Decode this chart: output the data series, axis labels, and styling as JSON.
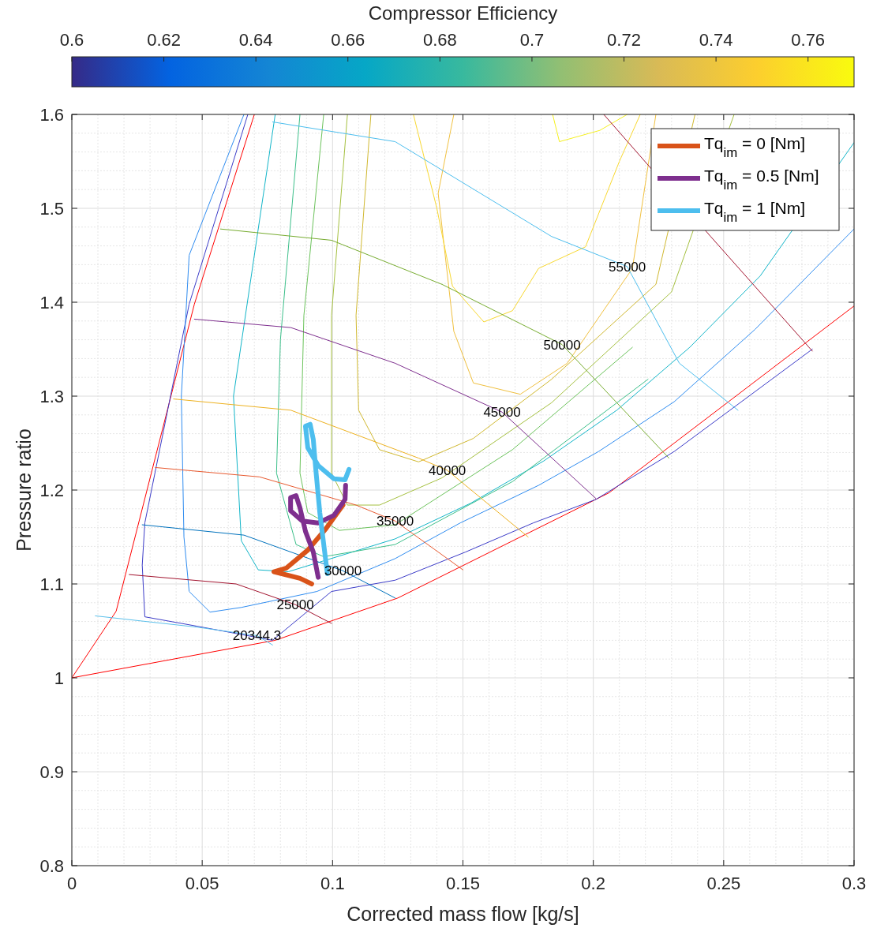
{
  "chart_data": {
    "type": "line",
    "xlabel": "Corrected mass flow [kg/s]",
    "ylabel": "Pressure ratio",
    "clabel": "Compressor Efficiency",
    "clim": [
      0.6,
      0.77
    ],
    "cticks": [
      0.6,
      0.62,
      0.64,
      0.66,
      0.68,
      0.7,
      0.72,
      0.74,
      0.76
    ],
    "xlim": [
      0,
      0.3
    ],
    "ylim": [
      0.8,
      1.6
    ],
    "xticks": [
      0,
      0.05,
      0.1,
      0.15,
      0.2,
      0.25,
      0.3
    ],
    "yticks": [
      0.8,
      0.9,
      1,
      1.1,
      1.2,
      1.3,
      1.4,
      1.5,
      1.6
    ],
    "grid": true,
    "legend": "top right",
    "series": [
      {
        "color": "#ff0000",
        "x": [
          0,
          0.017,
          0.047,
          0.07
        ],
        "values": [
          1.0,
          1.071,
          1.398,
          1.6
        ]
      },
      {
        "color": "#ff0000",
        "x": [
          0,
          0.078,
          0.125,
          0.206,
          0.3
        ],
        "values": [
          1.0,
          1.04,
          1.085,
          1.197,
          1.396
        ]
      },
      {
        "color": "#3c3cc8",
        "x": [
          0.0675,
          0.045,
          0.028,
          0.027,
          0.028,
          0.048,
          0.077,
          0.0996,
          0.124,
          0.151,
          0.177,
          0.201,
          0.231,
          0.284
        ],
        "values": [
          1.6,
          1.398,
          1.165,
          1.12,
          1.065,
          1.055,
          1.04,
          1.092,
          1.104,
          1.134,
          1.165,
          1.19,
          1.241,
          1.35
        ]
      },
      {
        "color": "#2f8cf0",
        "x": [
          0.066,
          0.045,
          0.042,
          0.043,
          0.045,
          0.053,
          0.065,
          0.094,
          0.124,
          0.149,
          0.179,
          0.202,
          0.231,
          0.262,
          0.3
        ],
        "values": [
          1.6,
          1.45,
          1.3,
          1.15,
          1.092,
          1.07,
          1.075,
          1.092,
          1.127,
          1.165,
          1.205,
          1.241,
          1.294,
          1.371,
          1.478
        ]
      },
      {
        "color": "#12b5c8",
        "x": [
          0.078,
          0.062,
          0.065,
          0.0715,
          0.083,
          0.124,
          0.153,
          0.181,
          0.209,
          0.237,
          0.264,
          0.3
        ],
        "values": [
          1.6,
          1.3,
          1.146,
          1.115,
          1.113,
          1.148,
          1.186,
          1.231,
          1.285,
          1.352,
          1.428,
          1.57
        ]
      },
      {
        "color": "#3cbf8a",
        "x": [
          0.0875,
          0.08,
          0.0785,
          0.086,
          0.0966,
          0.124,
          0.169,
          0.221
        ],
        "values": [
          1.6,
          1.36,
          1.218,
          1.142,
          1.129,
          1.142,
          1.209,
          1.318
        ]
      },
      {
        "color": "#6cc35c",
        "x": [
          0.0966,
          0.089,
          0.0875,
          0.0905,
          0.1026,
          0.124,
          0.169,
          0.215
        ],
        "values": [
          1.6,
          1.386,
          1.218,
          1.176,
          1.157,
          1.163,
          1.243,
          1.352
        ]
      },
      {
        "color": "#a5c040",
        "x": [
          0.1057,
          0.0996,
          0.0996,
          0.1057,
          0.118,
          0.142,
          0.184,
          0.23,
          0.254
        ],
        "values": [
          1.6,
          1.386,
          1.218,
          1.184,
          1.184,
          1.213,
          1.293,
          1.411,
          1.6
        ]
      },
      {
        "color": "#d0b830",
        "x": [
          0.1147,
          0.109,
          0.11,
          0.118,
          0.133,
          0.154,
          0.184,
          0.224,
          0.239
        ],
        "values": [
          1.6,
          1.386,
          1.285,
          1.243,
          1.23,
          1.255,
          1.318,
          1.419,
          1.6
        ]
      },
      {
        "color": "#f0c040",
        "x": [
          0.1465,
          0.1405,
          0.1465,
          0.154,
          0.172,
          0.19,
          0.215,
          0.224
        ],
        "values": [
          1.6,
          1.516,
          1.369,
          1.314,
          1.302,
          1.335,
          1.436,
          1.6
        ]
      },
      {
        "color": "#f8d830",
        "x": [
          0.131,
          0.14,
          0.146,
          0.158,
          0.169,
          0.179,
          0.197,
          0.21,
          0.218
        ],
        "values": [
          1.6,
          1.5,
          1.417,
          1.379,
          1.391,
          1.436,
          1.459,
          1.55,
          1.6
        ]
      },
      {
        "color": "#f5f020",
        "x": [
          0.1844,
          0.187,
          0.2025,
          0.213
        ],
        "values": [
          1.6,
          1.571,
          1.583,
          1.6
        ]
      },
      {
        "color": "#5bc0eb",
        "x": [
          0.009,
          0.048,
          0.071,
          0.077
        ],
        "values": [
          1.066,
          1.054,
          1.045,
          1.035
        ]
      },
      {
        "color": "#a2142f",
        "x": [
          0.022,
          0.063,
          0.0857,
          0.0996
        ],
        "values": [
          1.11,
          1.1,
          1.078,
          1.058
        ]
      },
      {
        "color": "#0072bd",
        "x": [
          0.027,
          0.066,
          0.104,
          0.124
        ],
        "values": [
          1.163,
          1.152,
          1.114,
          1.085
        ]
      },
      {
        "color": "#e85a30",
        "x": [
          0.032,
          0.072,
          0.109,
          0.124,
          0.15
        ],
        "values": [
          1.224,
          1.214,
          1.184,
          1.167,
          1.115
        ]
      },
      {
        "color": "#edb120",
        "x": [
          0.039,
          0.084,
          0.133,
          0.144,
          0.175
        ],
        "values": [
          1.297,
          1.285,
          1.234,
          1.221,
          1.15
        ]
      },
      {
        "color": "#7e2f8e",
        "x": [
          0.047,
          0.084,
          0.124,
          0.165,
          0.201
        ],
        "values": [
          1.382,
          1.373,
          1.335,
          1.283,
          1.191
        ]
      },
      {
        "color": "#77ac30",
        "x": [
          0.057,
          0.0996,
          0.142,
          0.188,
          0.229
        ],
        "values": [
          1.478,
          1.466,
          1.419,
          1.355,
          1.234
        ]
      },
      {
        "color": "#4dbeee",
        "x": [
          0.077,
          0.124,
          0.184,
          0.213,
          0.233,
          0.2555
        ],
        "values": [
          1.592,
          1.571,
          1.47,
          1.438,
          1.335,
          1.285
        ]
      },
      {
        "color": "#a2142f",
        "x": [
          0.204,
          0.245,
          0.284
        ],
        "values": [
          1.6,
          1.47,
          1.348
        ]
      },
      {
        "name": "Tq$_{im}$ = 0 [Nm]",
        "color": "#d95319",
        "x": [
          0.104,
          0.0975,
          0.0905,
          0.0823,
          0.0775,
          0.0875,
          0.092
        ],
        "values": [
          1.184,
          1.159,
          1.136,
          1.117,
          1.113,
          1.106,
          1.1
        ]
      },
      {
        "name": "Tq$_{im}$ = 0.5 [Nm]",
        "color": "#7e2f8e",
        "x": [
          0.105,
          0.1048,
          0.1005,
          0.0945,
          0.0884,
          0.0839,
          0.0839,
          0.086,
          0.0875,
          0.0896,
          0.0926,
          0.0945
        ],
        "values": [
          1.205,
          1.19,
          1.173,
          1.165,
          1.167,
          1.178,
          1.192,
          1.194,
          1.181,
          1.156,
          1.134,
          1.107
        ]
      },
      {
        "name": "Tq$_{im}$ = 1 [Nm]",
        "color": "#4dbeee",
        "x": [
          0.1063,
          0.1048,
          0.1005,
          0.0945,
          0.0905,
          0.0896,
          0.0914,
          0.0926,
          0.0935,
          0.0951,
          0.098
        ],
        "values": [
          1.222,
          1.211,
          1.212,
          1.226,
          1.245,
          1.268,
          1.27,
          1.254,
          1.224,
          1.176,
          1.111
        ]
      }
    ],
    "annotations": [
      {
        "text": "55000",
        "x": 0.213,
        "y": 1.438
      },
      {
        "text": "50000",
        "x": 0.188,
        "y": 1.355
      },
      {
        "text": "45000",
        "x": 0.165,
        "y": 1.283
      },
      {
        "text": "40000",
        "x": 0.144,
        "y": 1.221
      },
      {
        "text": "35000",
        "x": 0.124,
        "y": 1.167
      },
      {
        "text": "30000",
        "x": 0.104,
        "y": 1.114
      },
      {
        "text": "25000",
        "x": 0.0857,
        "y": 1.078
      },
      {
        "text": "20344.3",
        "x": 0.071,
        "y": 1.045
      }
    ]
  }
}
